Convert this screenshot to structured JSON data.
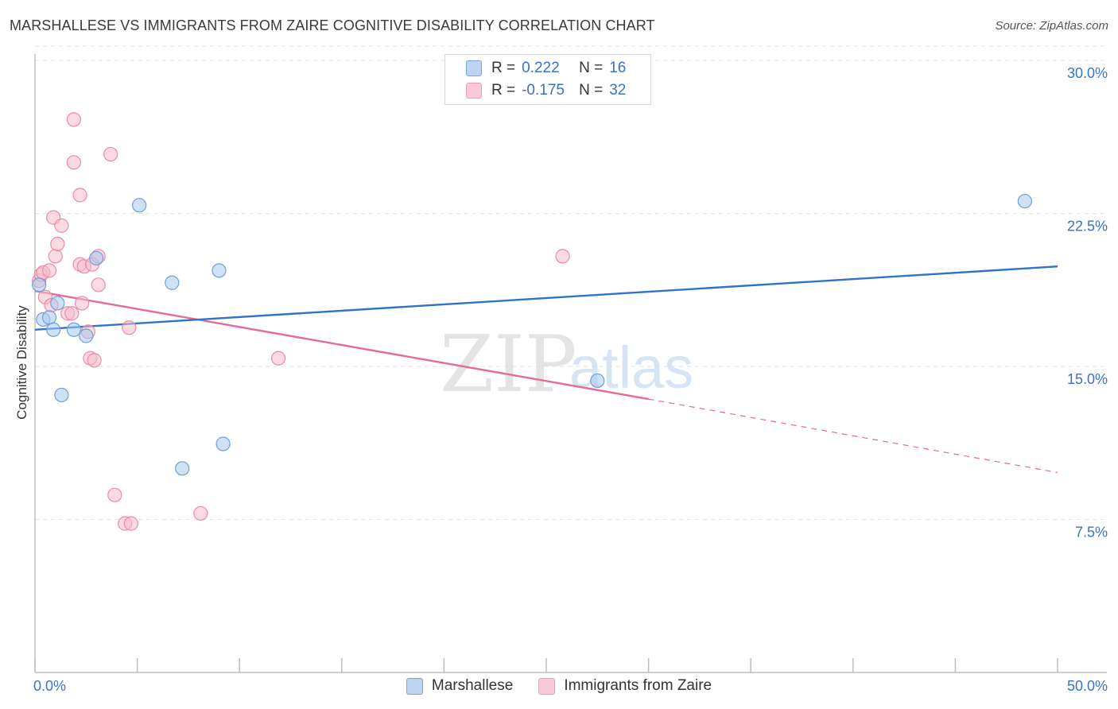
{
  "header": {
    "title": "MARSHALLESE VS IMMIGRANTS FROM ZAIRE COGNITIVE DISABILITY CORRELATION CHART",
    "source": "Source: ZipAtlas.com"
  },
  "watermark": {
    "zip": "ZIP",
    "atlas": "atlas"
  },
  "legend": {
    "r_label": "R =",
    "n_label": "N =",
    "series": [
      {
        "name": "Marshallese",
        "r": "0.222",
        "n": "16"
      },
      {
        "name": "Immigrants from Zaire",
        "r": "-0.175",
        "n": "32"
      }
    ]
  },
  "colors": {
    "blue_fill": "#aac8ee",
    "blue_stroke": "#6f9fd8",
    "blue_line": "#2f72c9",
    "pink_fill": "#f7bccd",
    "pink_stroke": "#ec8aa7",
    "pink_line": "#e46b93",
    "axis_text": "#3a73c5",
    "grid": "#e2e2e2"
  },
  "chart_data": {
    "type": "scatter",
    "title": "MARSHALLESE VS IMMIGRANTS FROM ZAIRE COGNITIVE DISABILITY CORRELATION CHART",
    "xlabel": "",
    "ylabel": "Cognitive Disability",
    "xlim": [
      0,
      50
    ],
    "ylim": [
      0,
      30.7
    ],
    "x_tick_labels": [
      "0.0%",
      "50.0%"
    ],
    "y_ticks": [
      7.5,
      15.0,
      22.5,
      30.0
    ],
    "y_tick_labels": [
      "7.5%",
      "15.0%",
      "22.5%",
      "30.0%"
    ],
    "grid": true,
    "legend_position": "top-center",
    "series": [
      {
        "name": "Marshallese",
        "points": [
          [
            0.2,
            19.0
          ],
          [
            0.4,
            17.3
          ],
          [
            0.7,
            17.4
          ],
          [
            0.9,
            16.8
          ],
          [
            1.1,
            18.1
          ],
          [
            1.3,
            13.6
          ],
          [
            1.9,
            16.8
          ],
          [
            2.5,
            16.5
          ],
          [
            3.0,
            20.3
          ],
          [
            5.1,
            22.9
          ],
          [
            6.7,
            19.1
          ],
          [
            7.2,
            10.0
          ],
          [
            9.0,
            19.7
          ],
          [
            9.2,
            11.2
          ],
          [
            27.5,
            14.3
          ],
          [
            48.4,
            23.1
          ]
        ],
        "trend": {
          "x": [
            0,
            50
          ],
          "y": [
            16.8,
            19.9
          ]
        }
      },
      {
        "name": "Immigrants from Zaire",
        "points": [
          [
            0.2,
            19.2
          ],
          [
            0.3,
            19.5
          ],
          [
            0.4,
            19.6
          ],
          [
            0.5,
            18.4
          ],
          [
            0.7,
            19.7
          ],
          [
            0.8,
            18.0
          ],
          [
            0.9,
            22.3
          ],
          [
            1.0,
            20.4
          ],
          [
            1.1,
            21.0
          ],
          [
            1.3,
            21.9
          ],
          [
            1.6,
            17.6
          ],
          [
            1.8,
            17.6
          ],
          [
            1.9,
            25.0
          ],
          [
            1.9,
            27.1
          ],
          [
            2.2,
            20.0
          ],
          [
            2.2,
            23.4
          ],
          [
            2.3,
            18.1
          ],
          [
            2.4,
            19.9
          ],
          [
            2.6,
            16.7
          ],
          [
            2.7,
            15.4
          ],
          [
            2.8,
            20.0
          ],
          [
            2.9,
            15.3
          ],
          [
            3.1,
            20.4
          ],
          [
            3.1,
            19.0
          ],
          [
            3.7,
            25.4
          ],
          [
            3.9,
            8.7
          ],
          [
            4.4,
            7.3
          ],
          [
            4.6,
            16.9
          ],
          [
            4.7,
            7.3
          ],
          [
            8.1,
            7.8
          ],
          [
            11.9,
            15.4
          ],
          [
            25.8,
            20.4
          ]
        ],
        "trend": {
          "x": [
            0,
            30
          ],
          "y": [
            18.7,
            13.4
          ]
        },
        "trend_dashed": {
          "x": [
            30,
            50
          ],
          "y": [
            13.4,
            9.8
          ]
        }
      }
    ]
  }
}
